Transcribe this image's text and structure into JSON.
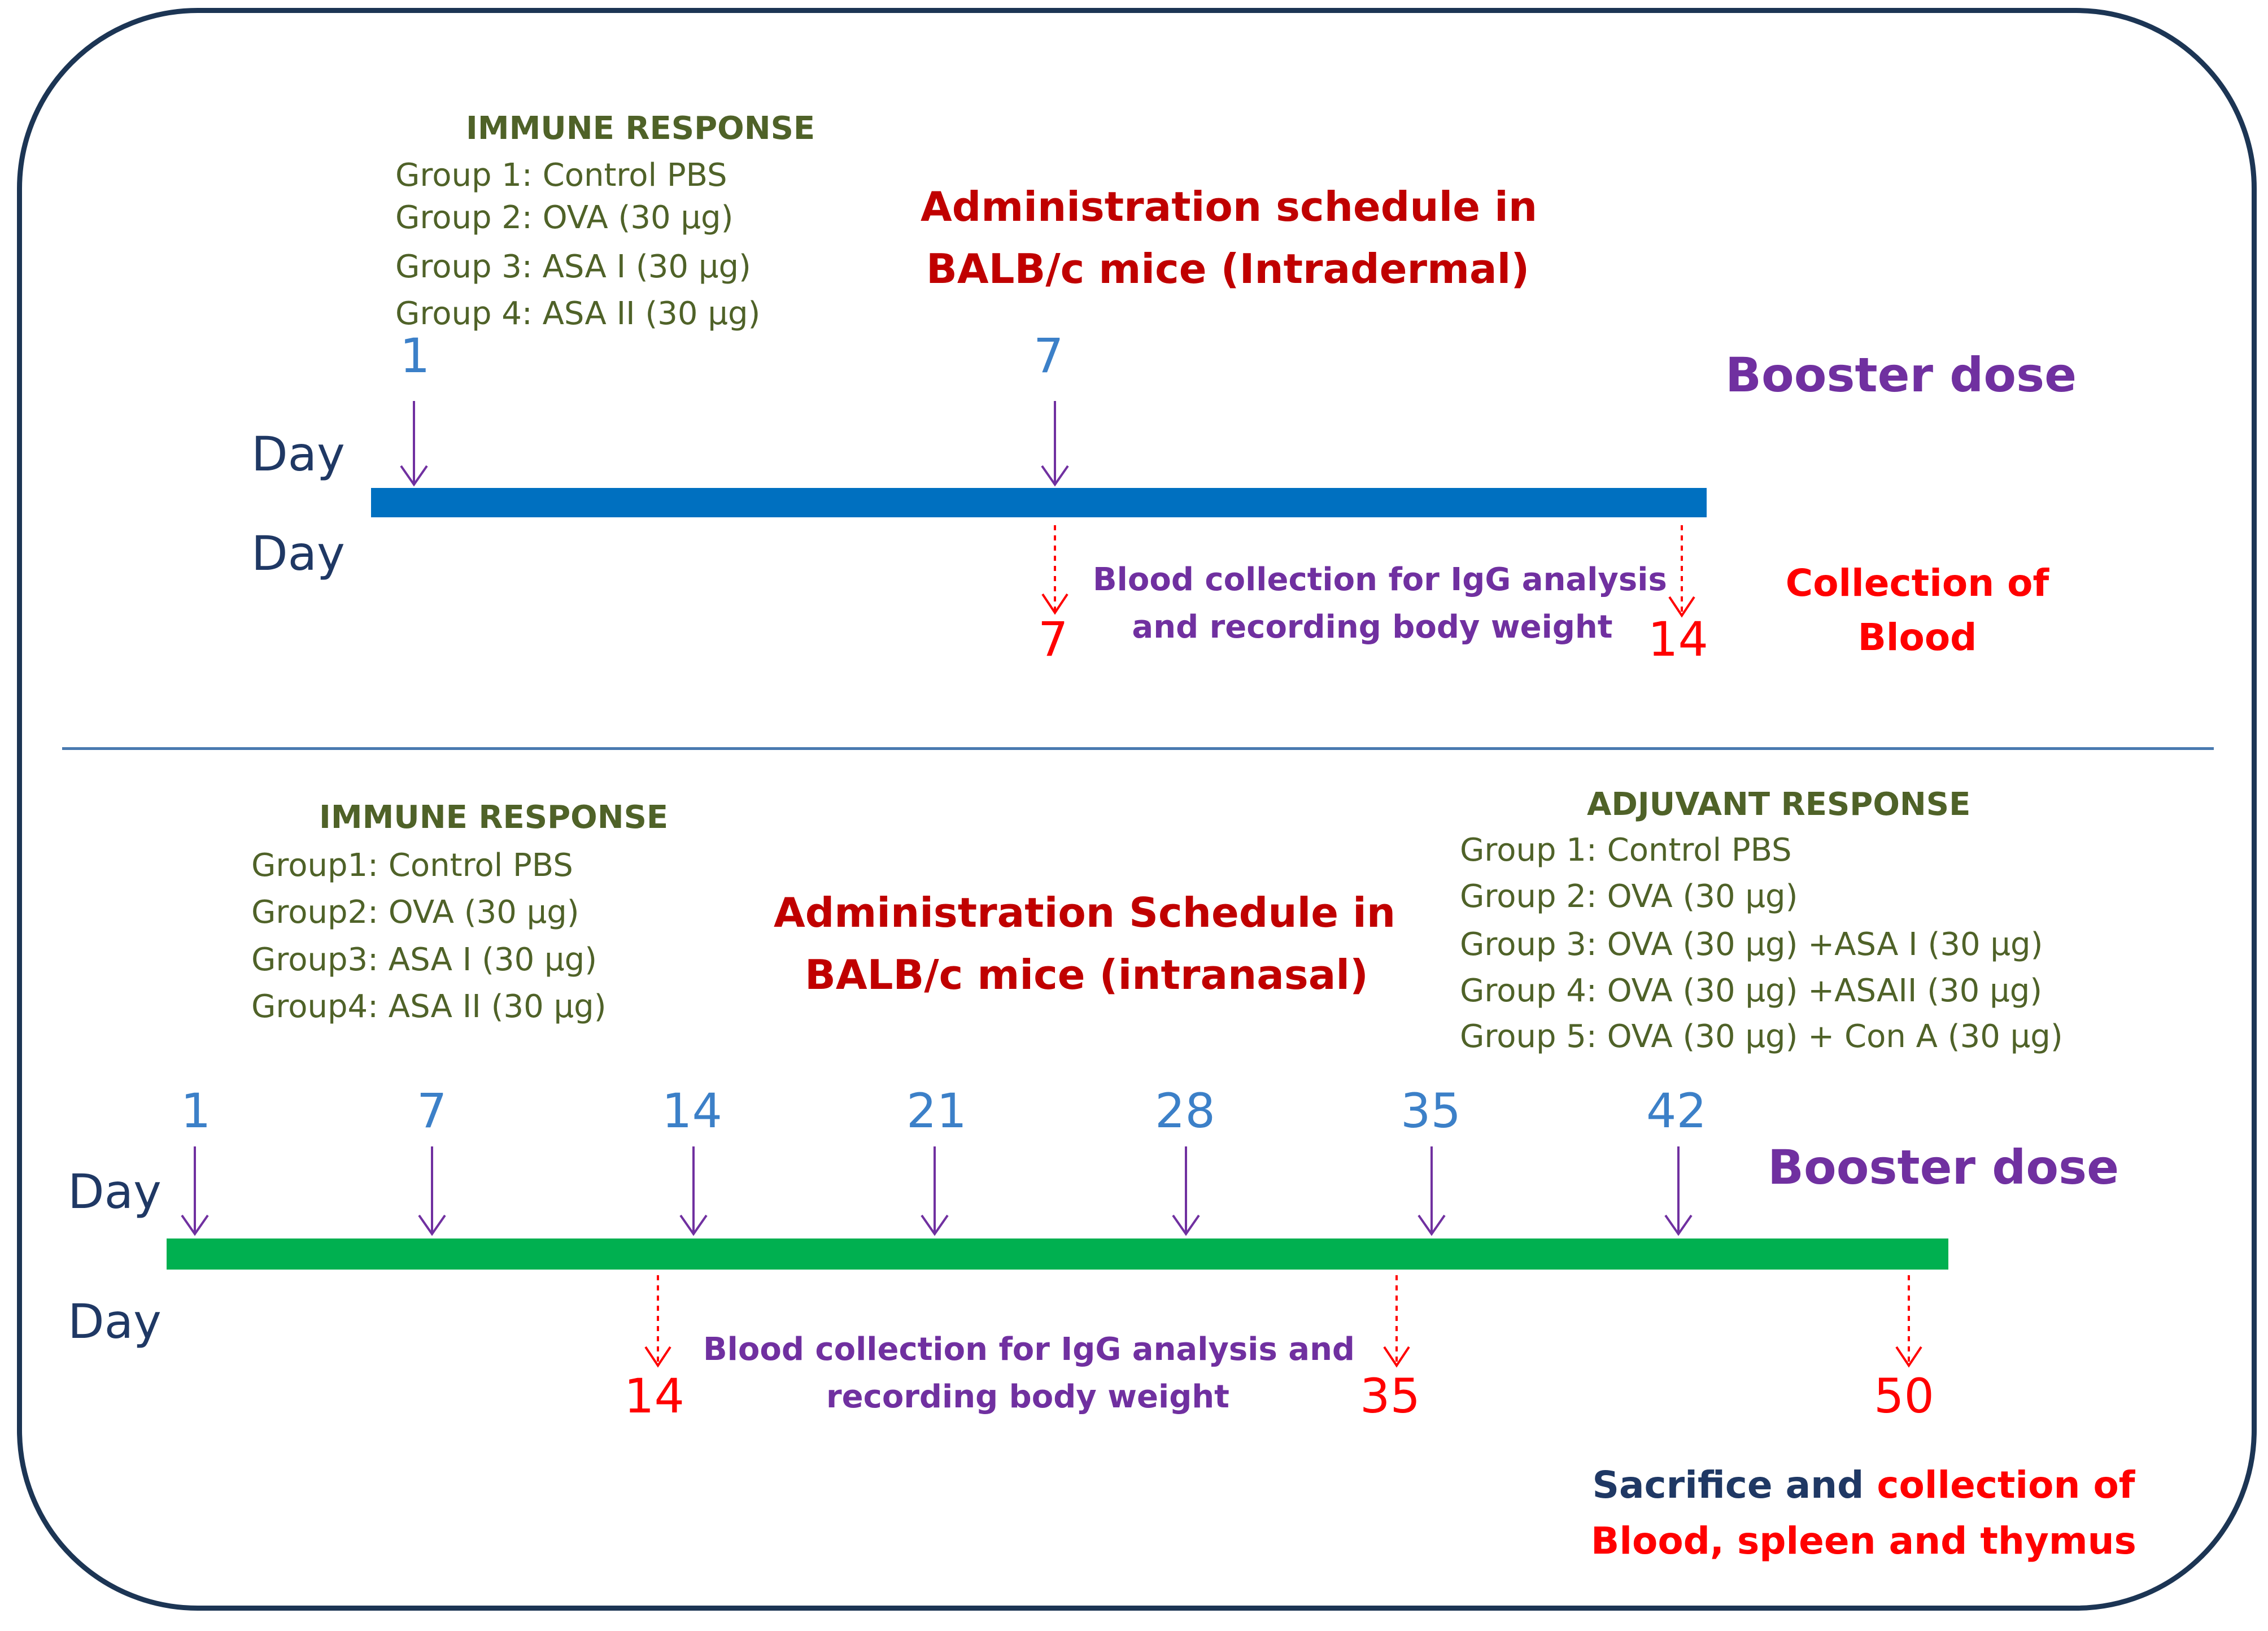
{
  "colors": {
    "frame": "#1c3554",
    "timeline_top": "#0070c0",
    "timeline_bottom": "#00b050",
    "booster_arrow": "#7030a0",
    "blood_arrow": "#ff0000"
  },
  "top": {
    "group_header": "IMMUNE RESPONSE",
    "groups": [
      "Group 1: Control PBS",
      "Group 2: OVA (30 μg)",
      "Group 3: ASA I (30 μg)",
      "Group 4: ASA II (30 μg)"
    ],
    "title_line1": "Administration schedule in",
    "title_line2": "BALB/c mice (Intradermal)",
    "booster_label": "Booster dose",
    "day_label_top": "Day",
    "day_label_bottom": "Day",
    "booster_days": [
      "1",
      "7"
    ],
    "collection_days": [
      "7",
      "14"
    ],
    "blood_line1": "Blood collection for IgG analysis",
    "blood_line2": "and recording body weight",
    "collection_line1": "Collection of",
    "collection_line2": "Blood"
  },
  "bottom": {
    "immune_header": "IMMUNE RESPONSE",
    "immune_groups": [
      "Group1: Control PBS",
      "Group2: OVA (30 μg)",
      "Group3: ASA I (30 μg)",
      "Group4: ASA II (30 μg)"
    ],
    "title_line1": "Administration Schedule in",
    "title_line2": "BALB/c mice (intranasal)",
    "adjuvant_header": "ADJUVANT RESPONSE",
    "adjuvant_groups": [
      "Group 1: Control PBS",
      "Group 2: OVA (30 μg)",
      "Group 3:  OVA (30 μg) +ASA I (30 μg)",
      "Group 4: OVA (30 μg) +ASAII (30 μg)",
      "Group 5: OVA (30 μg) + Con A (30 μg)"
    ],
    "booster_label": "Booster dose",
    "day_label_top": "Day",
    "day_label_bottom": "Day",
    "booster_days": [
      "1",
      "7",
      "14",
      "21",
      "28",
      "35",
      "42"
    ],
    "collection_days": [
      "14",
      "35",
      "50"
    ],
    "blood_line1": "Blood collection for IgG analysis and",
    "blood_line2": "recording body weight",
    "sacrifice_part1": "Sacrifice and",
    "sacrifice_part2": "collection of",
    "sacrifice_line2": "Blood, spleen and thymus"
  }
}
